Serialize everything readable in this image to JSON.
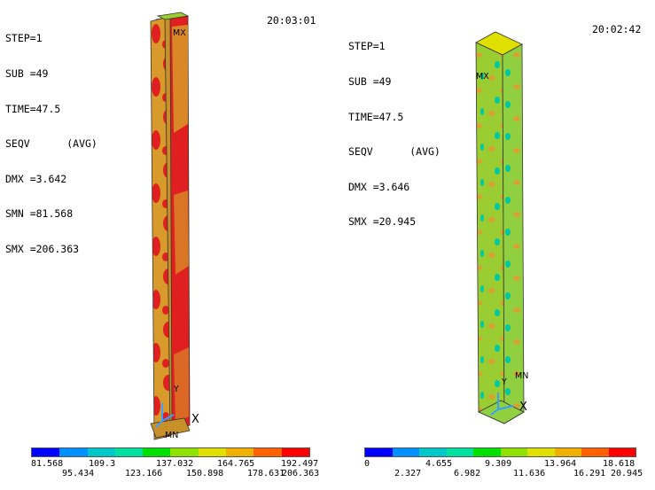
{
  "left": {
    "info": [
      "STEP=1",
      "SUB =49",
      "TIME=47.5",
      "SEQV      (AVG)",
      "DMX =3.642",
      "SMN =81.568",
      "SMX =206.363"
    ],
    "clock": "20:03:01",
    "mx_label": "MX",
    "mn_label": "MN",
    "y_label": "Y",
    "x_label": "X",
    "legend_top": [
      "81.568",
      "109.3",
      "137.032",
      "164.765",
      "192.497"
    ],
    "legend_bottom": [
      "95.434",
      "123.166",
      "150.898",
      "178.631",
      "206.363"
    ]
  },
  "right": {
    "info": [
      "STEP=1",
      "SUB =49",
      "TIME=47.5",
      "SEQV      (AVG)",
      "DMX =3.646",
      "SMX =20.945"
    ],
    "clock": "20:02:42",
    "mx_label": "MX",
    "mn_label": "MN",
    "y_label": "Y",
    "x_label": "X",
    "legend_top": [
      "0",
      "4.655",
      "9.309",
      "13.964",
      "18.618"
    ],
    "legend_bottom": [
      "2.327",
      "6.982",
      "11.636",
      "16.291",
      "20.945"
    ]
  },
  "colors": {
    "contour": [
      "#0000ff",
      "#0090ff",
      "#00c8c8",
      "#00e0a0",
      "#00e000",
      "#90e000",
      "#e0e000",
      "#f0b000",
      "#ff6000",
      "#ff0000"
    ],
    "column_gold": "#d89a2a",
    "column_red": "#e02020",
    "column_green": "#9acd32",
    "triad": "#3aa0ff"
  }
}
